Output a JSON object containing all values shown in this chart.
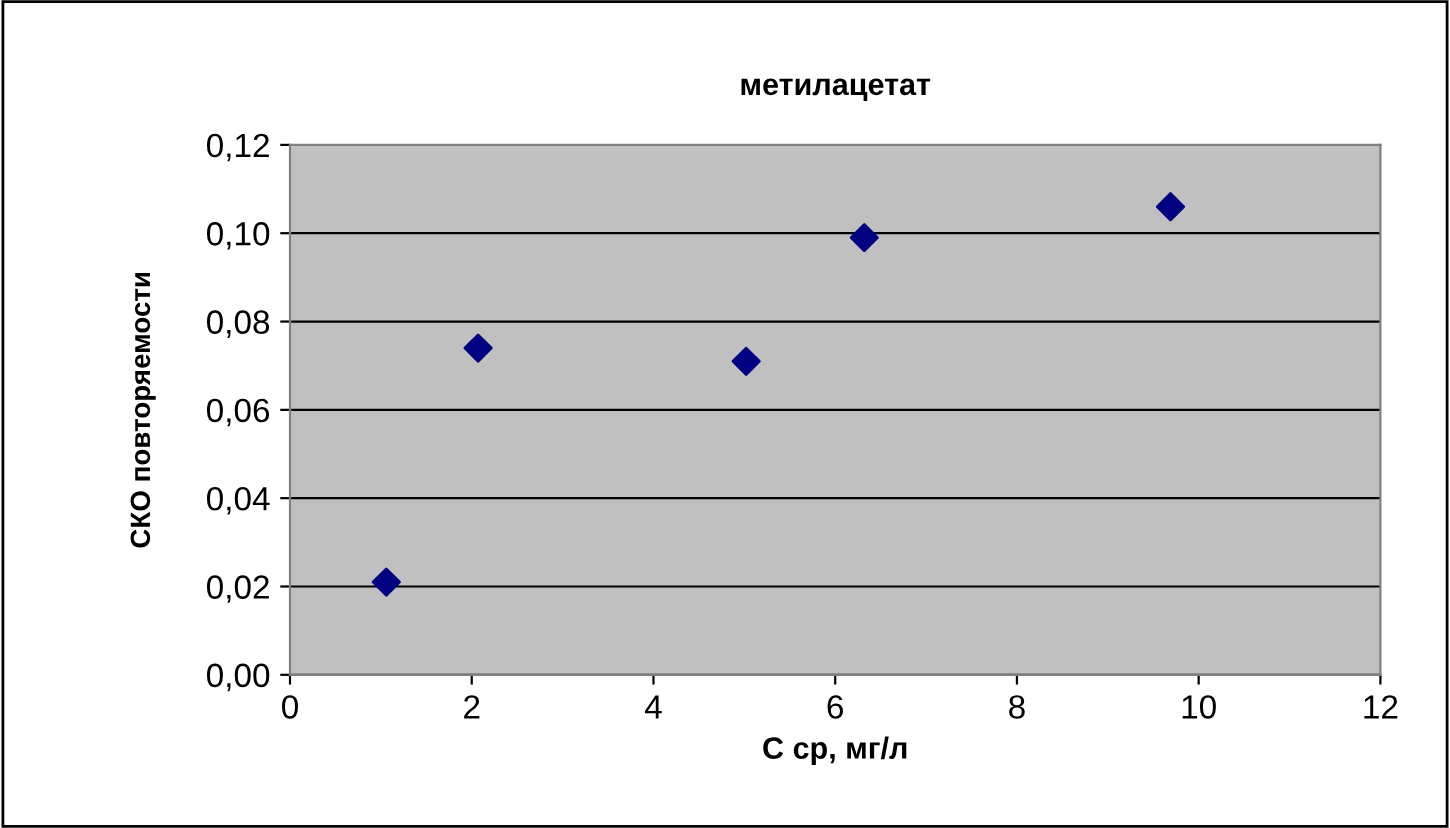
{
  "chart_data": {
    "type": "scatter",
    "title": "метилацетат",
    "xlabel": "С ср, мг/л",
    "ylabel": "СКО повторяемости",
    "x": [
      1.06,
      2.07,
      5.02,
      6.32,
      9.69
    ],
    "series": [
      {
        "color": "#000080",
        "values": [
          0.021,
          0.074,
          0.071,
          0.099,
          0.106
        ]
      }
    ],
    "xlim": [
      0,
      12
    ],
    "xticks": [
      0,
      2,
      4,
      6,
      8,
      10,
      12
    ],
    "ylim": [
      0,
      0.12
    ],
    "yticks": [
      {
        "value": 0,
        "label": "0,00"
      },
      {
        "value": 0.02,
        "label": "0,02"
      },
      {
        "value": 0.04,
        "label": "0,04"
      },
      {
        "value": 0.06,
        "label": "0,06"
      },
      {
        "value": 0.08,
        "label": "0,08"
      },
      {
        "value": 0.1,
        "label": "0,10"
      },
      {
        "value": 0.12,
        "label": "0,12"
      }
    ],
    "grid": "y",
    "marker": "diamond",
    "legend": false
  }
}
